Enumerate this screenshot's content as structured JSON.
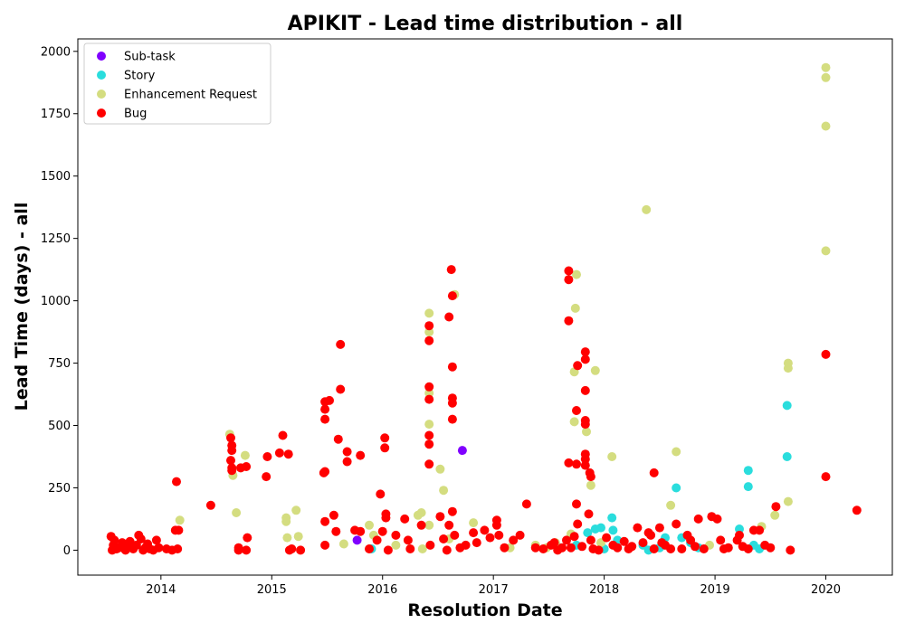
{
  "chart_data": {
    "type": "scatter",
    "title": "APIKIT - Lead time distribution - all",
    "xlabel": "Resolution Date",
    "ylabel": "Lead Time (days) - all",
    "x_unit": "year",
    "xlim": [
      2013.25,
      2020.6
    ],
    "ylim": [
      -100,
      2050
    ],
    "x_ticks": [
      2014,
      2015,
      2016,
      2017,
      2018,
      2019,
      2020
    ],
    "y_ticks": [
      0,
      250,
      500,
      750,
      1000,
      1250,
      1500,
      1750,
      2000
    ],
    "grid": false,
    "legend_position": "top-left",
    "series": [
      {
        "name": "Sub-task",
        "color": "#8000ff",
        "points": [
          [
            2015.77,
            40
          ],
          [
            2016.72,
            400
          ]
        ]
      },
      {
        "name": "Story",
        "color": "#2adddd",
        "points": [
          [
            2017.85,
            70
          ],
          [
            2017.92,
            85
          ],
          [
            2017.97,
            90
          ],
          [
            2018.07,
            130
          ],
          [
            2018.08,
            80
          ],
          [
            2018.12,
            40
          ],
          [
            2018.35,
            20
          ],
          [
            2018.4,
            0
          ],
          [
            2018.55,
            50
          ],
          [
            2018.65,
            250
          ],
          [
            2018.7,
            50
          ],
          [
            2018.78,
            30
          ],
          [
            2018.85,
            10
          ],
          [
            2019.22,
            85
          ],
          [
            2019.3,
            320
          ],
          [
            2019.3,
            255
          ],
          [
            2019.35,
            20
          ],
          [
            2019.65,
            580
          ],
          [
            2019.65,
            375
          ],
          [
            2015.9,
            5
          ],
          [
            2017.6,
            10
          ],
          [
            2017.75,
            20
          ],
          [
            2018.0,
            5
          ],
          [
            2018.5,
            10
          ],
          [
            2019.4,
            5
          ]
        ]
      },
      {
        "name": "Enhancement Request",
        "color": "#d4dd80",
        "points": [
          [
            2014.17,
            120
          ],
          [
            2014.62,
            465
          ],
          [
            2014.65,
            300
          ],
          [
            2014.68,
            150
          ],
          [
            2014.72,
            330
          ],
          [
            2014.76,
            380
          ],
          [
            2015.13,
            130
          ],
          [
            2015.13,
            115
          ],
          [
            2015.14,
            50
          ],
          [
            2015.22,
            160
          ],
          [
            2015.24,
            55
          ],
          [
            2015.65,
            25
          ],
          [
            2015.88,
            100
          ],
          [
            2015.92,
            60
          ],
          [
            2016.12,
            20
          ],
          [
            2016.32,
            140
          ],
          [
            2016.35,
            150
          ],
          [
            2016.36,
            5
          ],
          [
            2016.42,
            950
          ],
          [
            2016.42,
            875
          ],
          [
            2016.42,
            630
          ],
          [
            2016.42,
            505
          ],
          [
            2016.42,
            100
          ],
          [
            2016.52,
            325
          ],
          [
            2016.55,
            240
          ],
          [
            2016.6,
            45
          ],
          [
            2016.65,
            1025
          ],
          [
            2016.82,
            110
          ],
          [
            2017.15,
            10
          ],
          [
            2017.38,
            20
          ],
          [
            2017.48,
            10
          ],
          [
            2017.56,
            30
          ],
          [
            2017.7,
            65
          ],
          [
            2017.73,
            515
          ],
          [
            2017.73,
            715
          ],
          [
            2017.74,
            970
          ],
          [
            2017.75,
            1105
          ],
          [
            2017.84,
            475
          ],
          [
            2017.88,
            260
          ],
          [
            2017.92,
            720
          ],
          [
            2017.97,
            30
          ],
          [
            2018.07,
            375
          ],
          [
            2018.38,
            1365
          ],
          [
            2018.6,
            180
          ],
          [
            2018.65,
            395
          ],
          [
            2019.42,
            95
          ],
          [
            2019.54,
            140
          ],
          [
            2019.66,
            195
          ],
          [
            2019.66,
            750
          ],
          [
            2019.66,
            730
          ],
          [
            2020.0,
            1935
          ],
          [
            2020.0,
            1895
          ],
          [
            2020.0,
            1700
          ],
          [
            2020.0,
            1200
          ],
          [
            2018.95,
            20
          ]
        ]
      },
      {
        "name": "Bug",
        "color": "#ff0000",
        "points": [
          [
            2013.55,
            55
          ],
          [
            2013.56,
            0
          ],
          [
            2013.57,
            20
          ],
          [
            2013.58,
            40
          ],
          [
            2013.6,
            5
          ],
          [
            2013.62,
            10
          ],
          [
            2013.65,
            30
          ],
          [
            2013.68,
            0
          ],
          [
            2013.7,
            15
          ],
          [
            2013.72,
            35
          ],
          [
            2013.75,
            5
          ],
          [
            2013.78,
            20
          ],
          [
            2013.8,
            60
          ],
          [
            2013.82,
            45
          ],
          [
            2013.84,
            0
          ],
          [
            2013.86,
            10
          ],
          [
            2013.88,
            25
          ],
          [
            2013.9,
            5
          ],
          [
            2013.93,
            0
          ],
          [
            2013.96,
            40
          ],
          [
            2013.98,
            10
          ],
          [
            2014.05,
            5
          ],
          [
            2014.1,
            0
          ],
          [
            2014.13,
            80
          ],
          [
            2014.14,
            275
          ],
          [
            2014.16,
            80
          ],
          [
            2014.15,
            5
          ],
          [
            2014.45,
            180
          ],
          [
            2014.63,
            450
          ],
          [
            2014.64,
            420
          ],
          [
            2014.64,
            400
          ],
          [
            2014.63,
            360
          ],
          [
            2014.64,
            330
          ],
          [
            2014.64,
            320
          ],
          [
            2014.7,
            0
          ],
          [
            2014.7,
            10
          ],
          [
            2014.72,
            330
          ],
          [
            2014.77,
            335
          ],
          [
            2014.78,
            50
          ],
          [
            2014.77,
            0
          ],
          [
            2014.96,
            375
          ],
          [
            2014.95,
            295
          ],
          [
            2015.07,
            390
          ],
          [
            2015.1,
            460
          ],
          [
            2015.15,
            385
          ],
          [
            2015.16,
            0
          ],
          [
            2015.18,
            5
          ],
          [
            2015.26,
            0
          ],
          [
            2015.47,
            310
          ],
          [
            2015.48,
            315
          ],
          [
            2015.48,
            525
          ],
          [
            2015.48,
            565
          ],
          [
            2015.48,
            595
          ],
          [
            2015.52,
            600
          ],
          [
            2015.48,
            115
          ],
          [
            2015.48,
            20
          ],
          [
            2015.56,
            140
          ],
          [
            2015.58,
            75
          ],
          [
            2015.6,
            445
          ],
          [
            2015.62,
            825
          ],
          [
            2015.62,
            645
          ],
          [
            2015.68,
            395
          ],
          [
            2015.68,
            355
          ],
          [
            2015.75,
            80
          ],
          [
            2015.8,
            380
          ],
          [
            2015.8,
            75
          ],
          [
            2015.88,
            5
          ],
          [
            2015.95,
            40
          ],
          [
            2015.98,
            225
          ],
          [
            2016.0,
            75
          ],
          [
            2016.02,
            450
          ],
          [
            2016.02,
            410
          ],
          [
            2016.03,
            145
          ],
          [
            2016.03,
            130
          ],
          [
            2016.05,
            0
          ],
          [
            2016.12,
            60
          ],
          [
            2016.2,
            125
          ],
          [
            2016.23,
            40
          ],
          [
            2016.25,
            5
          ],
          [
            2016.35,
            100
          ],
          [
            2016.42,
            900
          ],
          [
            2016.42,
            840
          ],
          [
            2016.42,
            655
          ],
          [
            2016.42,
            605
          ],
          [
            2016.42,
            460
          ],
          [
            2016.42,
            425
          ],
          [
            2016.42,
            345
          ],
          [
            2016.43,
            20
          ],
          [
            2016.52,
            135
          ],
          [
            2016.55,
            45
          ],
          [
            2016.58,
            0
          ],
          [
            2016.6,
            935
          ],
          [
            2016.6,
            100
          ],
          [
            2016.62,
            1125
          ],
          [
            2016.63,
            1020
          ],
          [
            2016.63,
            735
          ],
          [
            2016.63,
            610
          ],
          [
            2016.63,
            590
          ],
          [
            2016.63,
            525
          ],
          [
            2016.63,
            155
          ],
          [
            2016.65,
            60
          ],
          [
            2016.7,
            10
          ],
          [
            2016.75,
            20
          ],
          [
            2016.82,
            70
          ],
          [
            2016.85,
            30
          ],
          [
            2016.92,
            80
          ],
          [
            2016.97,
            50
          ],
          [
            2017.03,
            120
          ],
          [
            2017.03,
            100
          ],
          [
            2017.05,
            60
          ],
          [
            2017.1,
            10
          ],
          [
            2017.18,
            40
          ],
          [
            2017.24,
            60
          ],
          [
            2017.3,
            185
          ],
          [
            2017.38,
            10
          ],
          [
            2017.45,
            5
          ],
          [
            2017.52,
            20
          ],
          [
            2017.55,
            30
          ],
          [
            2017.58,
            0
          ],
          [
            2017.62,
            10
          ],
          [
            2017.66,
            40
          ],
          [
            2017.68,
            1120
          ],
          [
            2017.68,
            1085
          ],
          [
            2017.68,
            920
          ],
          [
            2017.68,
            350
          ],
          [
            2017.7,
            10
          ],
          [
            2017.73,
            55
          ],
          [
            2017.75,
            560
          ],
          [
            2017.75,
            345
          ],
          [
            2017.75,
            185
          ],
          [
            2017.76,
            105
          ],
          [
            2017.76,
            740
          ],
          [
            2017.8,
            15
          ],
          [
            2017.83,
            795
          ],
          [
            2017.83,
            765
          ],
          [
            2017.83,
            640
          ],
          [
            2017.83,
            520
          ],
          [
            2017.83,
            505
          ],
          [
            2017.83,
            385
          ],
          [
            2017.83,
            365
          ],
          [
            2017.83,
            340
          ],
          [
            2017.87,
            310
          ],
          [
            2017.88,
            295
          ],
          [
            2017.86,
            145
          ],
          [
            2017.88,
            40
          ],
          [
            2017.9,
            5
          ],
          [
            2017.95,
            0
          ],
          [
            2018.02,
            50
          ],
          [
            2018.08,
            20
          ],
          [
            2018.12,
            10
          ],
          [
            2018.18,
            35
          ],
          [
            2018.22,
            5
          ],
          [
            2018.25,
            15
          ],
          [
            2018.3,
            90
          ],
          [
            2018.35,
            30
          ],
          [
            2018.4,
            70
          ],
          [
            2018.42,
            60
          ],
          [
            2018.45,
            310
          ],
          [
            2018.45,
            5
          ],
          [
            2018.5,
            90
          ],
          [
            2018.52,
            30
          ],
          [
            2018.55,
            20
          ],
          [
            2018.6,
            5
          ],
          [
            2018.65,
            105
          ],
          [
            2018.7,
            5
          ],
          [
            2018.75,
            60
          ],
          [
            2018.78,
            40
          ],
          [
            2018.82,
            15
          ],
          [
            2018.85,
            125
          ],
          [
            2018.9,
            5
          ],
          [
            2018.97,
            135
          ],
          [
            2019.02,
            125
          ],
          [
            2019.05,
            40
          ],
          [
            2019.08,
            5
          ],
          [
            2019.12,
            10
          ],
          [
            2019.2,
            40
          ],
          [
            2019.22,
            60
          ],
          [
            2019.25,
            15
          ],
          [
            2019.3,
            5
          ],
          [
            2019.35,
            80
          ],
          [
            2019.4,
            80
          ],
          [
            2019.45,
            20
          ],
          [
            2019.5,
            10
          ],
          [
            2019.55,
            175
          ],
          [
            2019.68,
            0
          ],
          [
            2020.0,
            785
          ],
          [
            2020.0,
            295
          ],
          [
            2020.28,
            160
          ]
        ]
      }
    ]
  }
}
